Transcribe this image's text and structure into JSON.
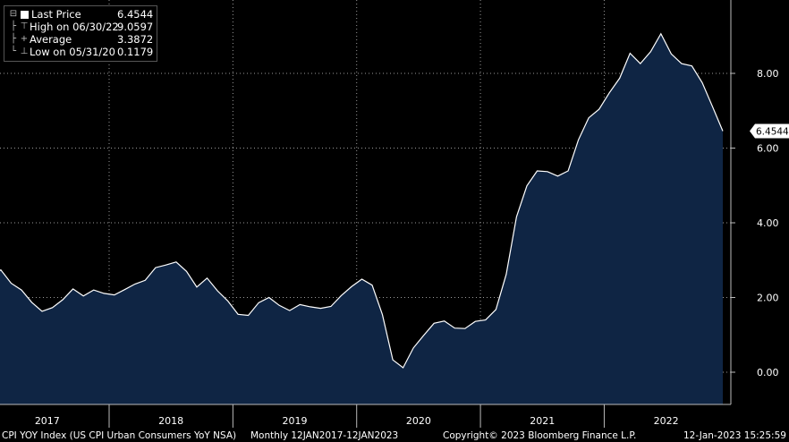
{
  "legend": {
    "last_label": "Last Price",
    "last_value": "6.4544",
    "high_label": "High on 06/30/22",
    "high_value": "9.0597",
    "avg_label": "Average",
    "avg_value": "3.3872",
    "low_label": "Low on 05/31/20",
    "low_value": "0.1179"
  },
  "footer": {
    "description": "CPI YOY Index (US CPI Urban Consumers YoY NSA)",
    "range": "Monthly 12JAN2017-12JAN2023",
    "copyright": "Copyright© 2023 Bloomberg Finance L.P.",
    "timestamp": "12-Jan-2023 15:25:59"
  },
  "last_value_tag": "6.4544",
  "colors": {
    "fill": "#0f2544",
    "line": "#ffffff",
    "grid": "#9a9a9a",
    "background": "#000000"
  },
  "chart_data": {
    "type": "area",
    "frequency": "monthly",
    "start": "2017-01",
    "end": "2022-12",
    "x_tick_labels": [
      "2017",
      "2018",
      "2019",
      "2020",
      "2021",
      "2022"
    ],
    "y_tick_labels": [
      "0.00",
      "2.00",
      "4.00",
      "6.00",
      "8.00"
    ],
    "ylim": [
      -0.8,
      9.8
    ],
    "grid": true,
    "values": [
      2.5,
      2.74,
      2.38,
      2.2,
      1.87,
      1.63,
      1.73,
      1.94,
      2.23,
      2.04,
      2.2,
      2.11,
      2.07,
      2.21,
      2.36,
      2.46,
      2.8,
      2.87,
      2.95,
      2.7,
      2.28,
      2.52,
      2.18,
      1.91,
      1.55,
      1.52,
      1.86,
      2.0,
      1.79,
      1.65,
      1.81,
      1.75,
      1.71,
      1.76,
      2.05,
      2.29,
      2.49,
      2.33,
      1.54,
      0.33,
      0.12,
      0.65,
      0.99,
      1.31,
      1.37,
      1.18,
      1.17,
      1.36,
      1.4,
      1.68,
      2.62,
      4.16,
      4.99,
      5.39,
      5.37,
      5.25,
      5.39,
      6.22,
      6.81,
      7.04,
      7.48,
      7.87,
      8.54,
      8.26,
      8.58,
      9.06,
      8.52,
      8.26,
      8.2,
      7.75,
      7.11,
      6.4544
    ]
  }
}
